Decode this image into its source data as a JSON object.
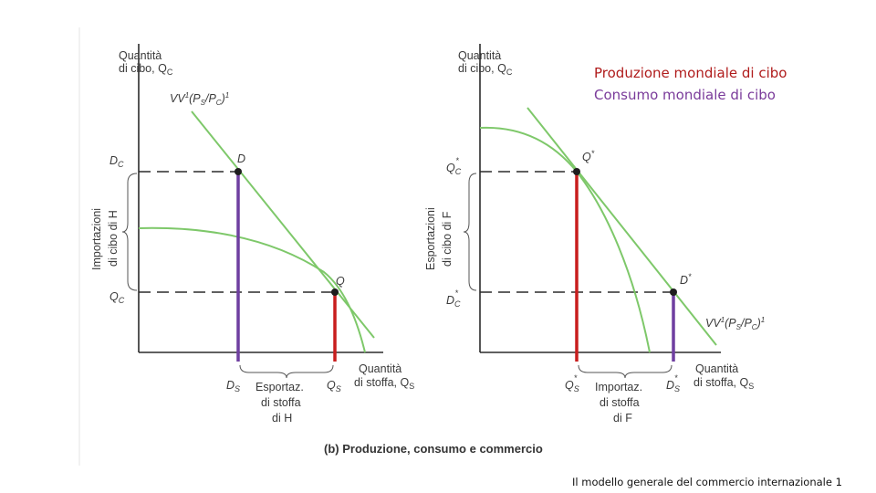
{
  "colors": {
    "axis": "#2b2b2b",
    "curve": "#7ec86a",
    "dashed": "#2b2b2b",
    "consumption": "#6f3fa0",
    "production": "#c81e1e",
    "legend_production": "#b01c1c",
    "legend_consumption": "#7a3b9a",
    "text": "#3a3a3a"
  },
  "legend": {
    "production": "Produzione mondiale di cibo",
    "consumption": "Consumo mondiale di cibo"
  },
  "left_panel": {
    "y_axis_line1": "Quantità",
    "y_axis_line2": "di cibo, Q",
    "y_axis_sub": "C",
    "x_axis_line1": "Quantità",
    "x_axis_line2": "di stoffa, Q",
    "x_axis_sub": "S",
    "budget_line_label": "VV",
    "budget_line_sup": "1",
    "budget_line_sup2": "1",
    "budget_line_ratio": "(P",
    "budget_line_ratio_s": "S",
    "budget_line_ratio_mid": "/P",
    "budget_line_ratio_c": "C",
    "budget_line_ratio_end": ")",
    "point_d": "D",
    "point_q": "Q",
    "tick_dc": "D",
    "tick_dc_sub": "C",
    "tick_qc": "Q",
    "tick_qc_sub": "C",
    "tick_ds": "D",
    "tick_ds_sub": "S",
    "tick_qs": "Q",
    "tick_qs_sub": "S",
    "bracket_vertical_line1": "Importazioni",
    "bracket_vertical_line2": "di cibo di H",
    "bracket_horizontal_line1": "Esportaz.",
    "bracket_horizontal_line2": "di stoffa",
    "bracket_horizontal_line3": "di H"
  },
  "right_panel": {
    "y_axis_line1": "Quantità",
    "y_axis_line2": "di cibo, Q",
    "y_axis_sub": "C",
    "x_axis_line1": "Quantità",
    "x_axis_line2": "di stoffa, Q",
    "x_axis_sub": "S",
    "budget_line_label": "VV",
    "budget_line_sup": "1",
    "budget_line_sup2": "1",
    "budget_line_ratio": "(P",
    "budget_line_ratio_s": "S",
    "budget_line_ratio_mid": "/P",
    "budget_line_ratio_c": "C",
    "budget_line_ratio_end": ")",
    "point_q": "Q",
    "point_q_star": "*",
    "point_d": "D",
    "point_d_star": "*",
    "tick_qc": "Q",
    "tick_qc_sub": "C",
    "tick_qc_star": "*",
    "tick_dc": "D",
    "tick_dc_sub": "C",
    "tick_dc_star": "*",
    "tick_qs": "Q",
    "tick_qs_sub": "S",
    "tick_qs_star": "*",
    "tick_ds": "D",
    "tick_ds_sub": "S",
    "tick_ds_star": "*",
    "bracket_vertical_line1": "Esportazioni",
    "bracket_vertical_line2": "di cibo di F",
    "bracket_horizontal_line1": "Importaz.",
    "bracket_horizontal_line2": "di stoffa",
    "bracket_horizontal_line3": "di F"
  },
  "caption": "(b) Produzione, consumo e commercio",
  "footer": "Il modello generale del commercio internazionale 1"
}
